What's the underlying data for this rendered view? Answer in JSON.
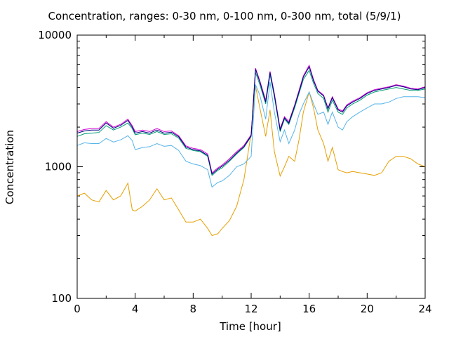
{
  "chart_data": {
    "type": "line",
    "title": "Concentration, ranges: 0-30 nm, 0-100 nm, 0-300 nm, total (5/9/1)",
    "xlabel": "Time [hour]",
    "ylabel": "Concentration",
    "xlim": [
      0,
      24
    ],
    "ylim": [
      100,
      10000
    ],
    "yscale": "log",
    "xticks": [
      0,
      4,
      8,
      12,
      16,
      20,
      24
    ],
    "yticks": [
      100,
      1000,
      10000
    ],
    "colors": [
      "#e69f00",
      "#56b4e9",
      "#009e73",
      "#d400d4",
      "#000080"
    ],
    "series": [
      {
        "x": [
          0,
          0.5,
          1,
          1.5,
          2,
          2.5,
          3,
          3.5,
          3.8,
          4,
          4.5,
          5,
          5.5,
          6,
          6.5,
          7,
          7.5,
          8,
          8.5,
          9,
          9.3,
          9.7,
          10,
          10.5,
          11,
          11.5,
          12,
          12.3,
          12.6,
          13,
          13.3,
          13.6,
          14,
          14.3,
          14.6,
          15,
          15.3,
          15.6,
          16,
          16.3,
          16.6,
          17,
          17.3,
          17.6,
          18,
          18.3,
          18.6,
          19,
          19.5,
          20,
          20.5,
          21,
          21.5,
          22,
          22.5,
          23,
          23.5,
          24
        ],
        "values": [
          600,
          630,
          560,
          540,
          660,
          560,
          600,
          750,
          470,
          460,
          500,
          560,
          680,
          560,
          580,
          470,
          380,
          380,
          400,
          340,
          300,
          310,
          340,
          390,
          500,
          800,
          1800,
          4100,
          2800,
          1700,
          2700,
          1300,
          850,
          1000,
          1200,
          1100,
          1600,
          2600,
          3700,
          2800,
          1900,
          1500,
          1100,
          1400,
          950,
          920,
          900,
          920,
          900,
          880,
          860,
          900,
          1100,
          1200,
          1200,
          1150,
          1050,
          1000
        ]
      },
      {
        "x": [
          0,
          0.5,
          1,
          1.5,
          2,
          2.5,
          3,
          3.5,
          3.8,
          4,
          4.5,
          5,
          5.5,
          6,
          6.5,
          7,
          7.5,
          8,
          8.5,
          9,
          9.3,
          9.7,
          10,
          10.5,
          11,
          11.5,
          12,
          12.3,
          12.6,
          13,
          13.3,
          13.6,
          14,
          14.3,
          14.6,
          15,
          15.3,
          15.6,
          16,
          16.3,
          16.6,
          17,
          17.3,
          17.6,
          18,
          18.3,
          18.6,
          19,
          19.5,
          20,
          20.5,
          21,
          21.5,
          22,
          22.5,
          23,
          23.5,
          24
        ],
        "values": [
          1450,
          1520,
          1500,
          1500,
          1640,
          1540,
          1600,
          1720,
          1580,
          1350,
          1400,
          1420,
          1500,
          1430,
          1450,
          1330,
          1100,
          1050,
          1020,
          950,
          700,
          760,
          780,
          860,
          1000,
          1050,
          1200,
          4200,
          3500,
          2300,
          4400,
          2600,
          1550,
          1900,
          1500,
          1900,
          2500,
          3000,
          3700,
          3000,
          2500,
          2600,
          2100,
          2600,
          2000,
          1900,
          2200,
          2400,
          2600,
          2800,
          3000,
          3000,
          3100,
          3300,
          3400,
          3400,
          3400,
          3350
        ]
      },
      {
        "x": [
          0,
          0.5,
          1,
          1.5,
          2,
          2.5,
          3,
          3.5,
          3.8,
          4,
          4.5,
          5,
          5.5,
          6,
          6.5,
          7,
          7.5,
          8,
          8.5,
          9,
          9.3,
          9.7,
          10,
          10.5,
          11,
          11.5,
          12,
          12.3,
          12.6,
          13,
          13.3,
          13.6,
          14,
          14.3,
          14.6,
          15,
          15.3,
          15.6,
          16,
          16.3,
          16.6,
          17,
          17.3,
          17.6,
          18,
          18.3,
          18.6,
          19,
          19.5,
          20,
          20.5,
          21,
          21.5,
          22,
          22.5,
          23,
          23.5,
          24
        ],
        "values": [
          1700,
          1780,
          1800,
          1820,
          2050,
          1900,
          2000,
          2150,
          1950,
          1750,
          1800,
          1760,
          1850,
          1760,
          1780,
          1650,
          1380,
          1330,
          1300,
          1200,
          860,
          940,
          980,
          1100,
          1250,
          1400,
          1700,
          5200,
          4200,
          3000,
          5000,
          3400,
          1850,
          2300,
          2100,
          2800,
          3600,
          4600,
          5400,
          4300,
          3600,
          3300,
          2600,
          3200,
          2600,
          2500,
          2800,
          3000,
          3200,
          3500,
          3700,
          3800,
          3900,
          4000,
          3900,
          3800,
          3800,
          3900
        ]
      },
      {
        "x": [
          0,
          0.5,
          1,
          1.5,
          2,
          2.5,
          3,
          3.5,
          3.8,
          4,
          4.5,
          5,
          5.5,
          6,
          6.5,
          7,
          7.5,
          8,
          8.5,
          9,
          9.3,
          9.7,
          10,
          10.5,
          11,
          11.5,
          12,
          12.3,
          12.6,
          13,
          13.3,
          13.6,
          14,
          14.3,
          14.6,
          15,
          15.3,
          15.6,
          16,
          16.3,
          16.6,
          17,
          17.3,
          17.6,
          18,
          18.3,
          18.6,
          19,
          19.5,
          20,
          20.5,
          21,
          21.5,
          22,
          22.5,
          23,
          23.5,
          24
        ],
        "values": [
          1850,
          1920,
          1950,
          1950,
          2200,
          2000,
          2100,
          2300,
          2050,
          1850,
          1900,
          1850,
          1950,
          1850,
          1870,
          1720,
          1440,
          1380,
          1350,
          1250,
          900,
          980,
          1030,
          1150,
          1300,
          1450,
          1750,
          5600,
          4500,
          3200,
          5300,
          3600,
          1950,
          2400,
          2200,
          2950,
          3800,
          4900,
          5900,
          4600,
          3800,
          3500,
          2800,
          3400,
          2750,
          2650,
          2950,
          3150,
          3350,
          3650,
          3850,
          3950,
          4050,
          4200,
          4100,
          3950,
          3900,
          4050
        ]
      },
      {
        "x": [
          0,
          0.5,
          1,
          1.5,
          2,
          2.5,
          3,
          3.5,
          3.8,
          4,
          4.5,
          5,
          5.5,
          6,
          6.5,
          7,
          7.5,
          8,
          8.5,
          9,
          9.3,
          9.7,
          10,
          10.5,
          11,
          11.5,
          12,
          12.3,
          12.6,
          13,
          13.3,
          13.6,
          14,
          14.3,
          14.6,
          15,
          15.3,
          15.6,
          16,
          16.3,
          16.6,
          17,
          17.3,
          17.6,
          18,
          18.3,
          18.6,
          19,
          19.5,
          20,
          20.5,
          21,
          21.5,
          22,
          22.5,
          23,
          23.5,
          24
        ],
        "values": [
          1800,
          1870,
          1900,
          1900,
          2150,
          1960,
          2060,
          2250,
          2000,
          1800,
          1850,
          1800,
          1900,
          1800,
          1830,
          1690,
          1410,
          1350,
          1320,
          1220,
          880,
          960,
          1010,
          1120,
          1270,
          1420,
          1720,
          5500,
          4400,
          3100,
          5200,
          3500,
          1900,
          2350,
          2150,
          2900,
          3700,
          4800,
          5750,
          4500,
          3750,
          3450,
          2750,
          3350,
          2700,
          2600,
          2900,
          3100,
          3300,
          3600,
          3800,
          3900,
          4000,
          4150,
          4050,
          3900,
          3850,
          4000
        ]
      }
    ]
  }
}
